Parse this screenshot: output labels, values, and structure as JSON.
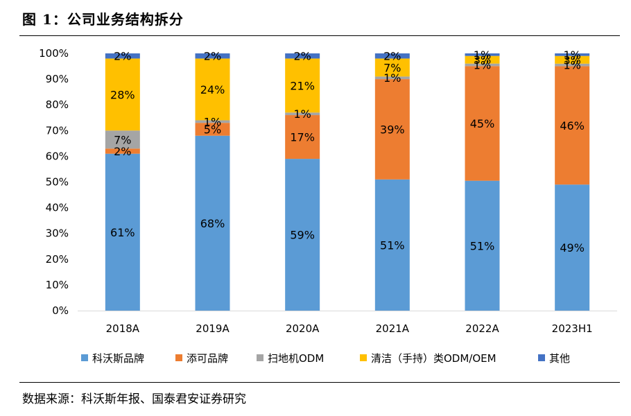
{
  "figure": {
    "title": "图 1：公司业务结构拆分",
    "source": "数据来源：科沃斯年报、国泰君安证券研究"
  },
  "chart_data": {
    "type": "bar",
    "stacked": true,
    "title": "公司业务结构拆分",
    "xlabel": "",
    "ylabel": "",
    "ylim": [
      0,
      100
    ],
    "y_ticks": [
      "0%",
      "10%",
      "20%",
      "30%",
      "40%",
      "50%",
      "60%",
      "70%",
      "80%",
      "90%",
      "100%"
    ],
    "categories": [
      "2018A",
      "2019A",
      "2020A",
      "2021A",
      "2022A",
      "2023H1"
    ],
    "series": [
      {
        "name": "科沃斯品牌",
        "color": "#5B9BD5",
        "values": [
          61,
          68,
          59,
          51,
          51,
          49
        ],
        "labels": [
          "61%",
          "68%",
          "59%",
          "51%",
          "51%",
          "49%"
        ]
      },
      {
        "name": "添可品牌",
        "color": "#ED7D31",
        "values": [
          2,
          5,
          17,
          39,
          45,
          46
        ],
        "labels": [
          "2%",
          "5%",
          "17%",
          "39%",
          "45%",
          "46%"
        ]
      },
      {
        "name": "扫地机ODM",
        "color": "#A5A5A5",
        "values": [
          7,
          1,
          1,
          1,
          1,
          1
        ],
        "labels": [
          "7%",
          "1%",
          "1%",
          "1%",
          "1%",
          "1%"
        ]
      },
      {
        "name": "清洁（手持）类ODM/OEM",
        "color": "#FFC000",
        "values": [
          28,
          24,
          21,
          7,
          3,
          3
        ],
        "labels": [
          "28%",
          "24%",
          "21%",
          "7%",
          "3%",
          "3%"
        ]
      },
      {
        "name": "其他",
        "color": "#4472C4",
        "values": [
          2,
          2,
          2,
          2,
          1,
          1
        ],
        "labels": [
          "2%",
          "2%",
          "2%",
          "2%",
          "1%",
          "1%"
        ]
      }
    ],
    "legend_position": "bottom",
    "grid": false
  }
}
